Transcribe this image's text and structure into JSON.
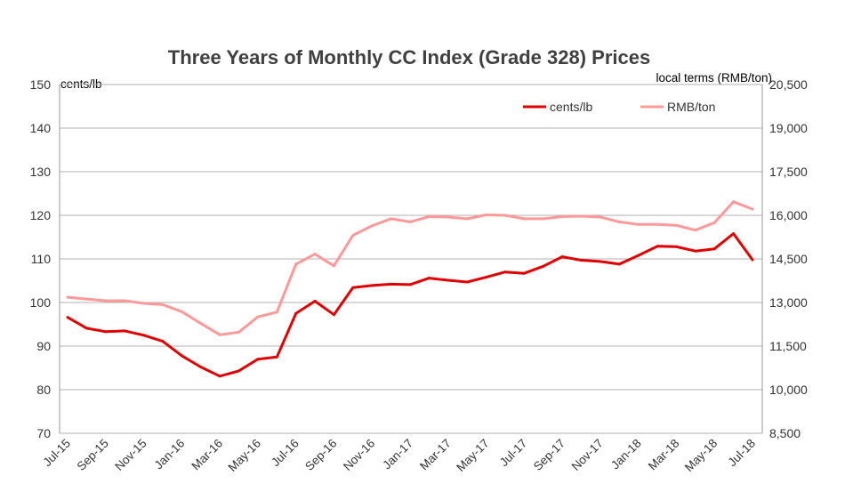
{
  "chart_data": {
    "type": "line",
    "title": "Three Years of Monthly CC Index (Grade 328) Prices",
    "ylabel_left": "cents/lb",
    "ylabel_right": "local terms (RMB/ton)",
    "ylim_left": [
      70,
      150
    ],
    "yticks_left": [
      70,
      80,
      90,
      100,
      110,
      120,
      130,
      140,
      150
    ],
    "ylim_right": [
      8500,
      20500
    ],
    "yticks_right": [
      "8,500",
      "10,000",
      "11,500",
      "13,000",
      "14,500",
      "16,000",
      "17,500",
      "19,000",
      "20,500"
    ],
    "grid": true,
    "legend_position": "top-right",
    "x": [
      "Jul-15",
      "Aug-15",
      "Sep-15",
      "Oct-15",
      "Nov-15",
      "Dec-15",
      "Jan-16",
      "Feb-16",
      "Mar-16",
      "Apr-16",
      "May-16",
      "Jun-16",
      "Jul-16",
      "Aug-16",
      "Sep-16",
      "Oct-16",
      "Nov-16",
      "Dec-16",
      "Jan-17",
      "Feb-17",
      "Mar-17",
      "Apr-17",
      "May-17",
      "Jun-17",
      "Jul-17",
      "Aug-17",
      "Sep-17",
      "Oct-17",
      "Nov-17",
      "Dec-17",
      "Jan-18",
      "Feb-18",
      "Mar-18",
      "Apr-18",
      "May-18",
      "Jun-18",
      "Jul-18"
    ],
    "xtick_labels": [
      "Jul-15",
      "Sep-15",
      "Nov-15",
      "Jan-16",
      "Mar-16",
      "May-16",
      "Jul-16",
      "Sep-16",
      "Nov-16",
      "Jan-17",
      "Mar-17",
      "May-17",
      "Jul-17",
      "Sep-17",
      "Nov-17",
      "Jan-18",
      "Mar-18",
      "May-18",
      "Jul-18"
    ],
    "series": [
      {
        "name": "cents/lb",
        "axis": "left",
        "color": "#e00000",
        "values": [
          96.6,
          94.1,
          93.3,
          93.5,
          92.5,
          91.1,
          87.8,
          85.2,
          83.1,
          84.3,
          87.0,
          87.5,
          97.5,
          100.3,
          97.2,
          103.4,
          103.9,
          104.2,
          104.1,
          105.6,
          105.1,
          104.7,
          105.8,
          107.0,
          106.7,
          108.3,
          110.5,
          109.7,
          109.4,
          108.8,
          110.8,
          112.9,
          112.8,
          111.8,
          112.3,
          115.8,
          109.8
        ]
      },
      {
        "name": "RMB/ton",
        "axis": "right",
        "color": "#ff9999",
        "values": [
          13180,
          13120,
          13060,
          13060,
          12970,
          12925,
          12685,
          12280,
          11890,
          11980,
          12505,
          12670,
          14320,
          14665,
          14260,
          15310,
          15640,
          15880,
          15775,
          15955,
          15940,
          15880,
          16015,
          16000,
          15880,
          15880,
          15955,
          15970,
          15940,
          15775,
          15685,
          15685,
          15655,
          15490,
          15745,
          16465,
          16210
        ]
      }
    ]
  }
}
